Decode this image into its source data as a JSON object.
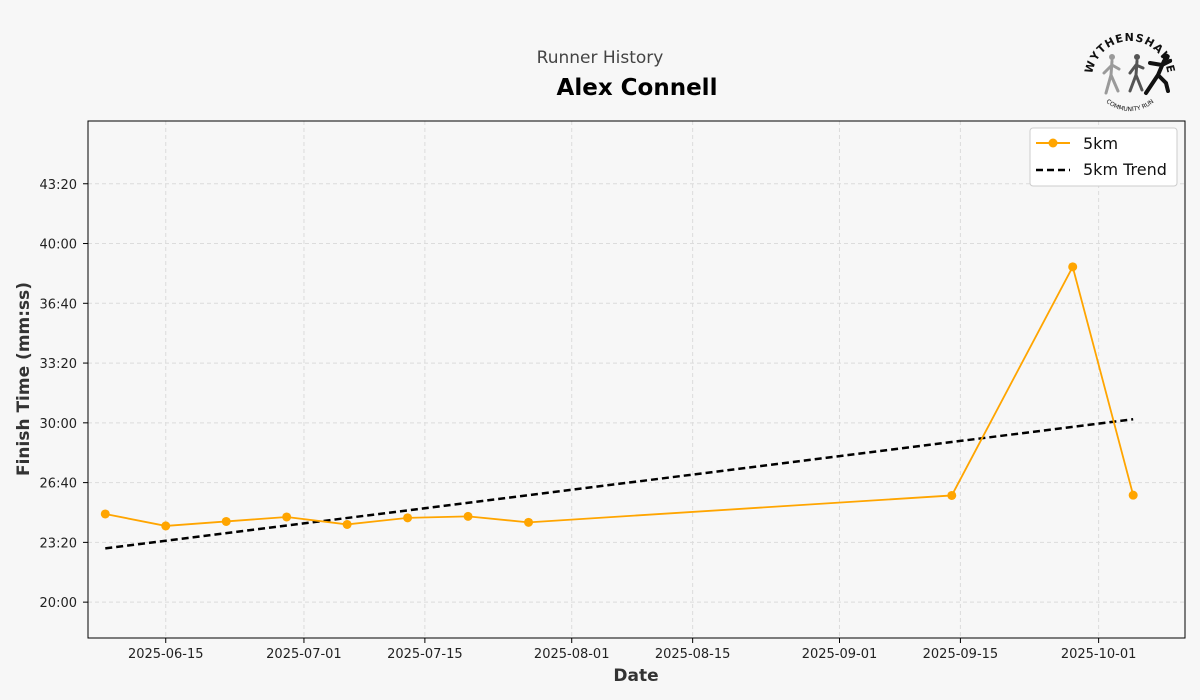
{
  "chart_data": {
    "type": "line",
    "subtitle": "Runner History",
    "title": "Alex Connell",
    "xlabel": "Date",
    "ylabel": "Finish Time (mm:ss)",
    "logo_text": "WYTHENSHAWE",
    "logo_subtext": "COMMUNITY RUN",
    "x_ticks": [
      "2025-06-15",
      "2025-07-01",
      "2025-07-15",
      "2025-08-01",
      "2025-08-15",
      "2025-09-01",
      "2025-09-15",
      "2025-10-01"
    ],
    "y_ticks": [
      "20:00",
      "23:20",
      "26:40",
      "30:00",
      "33:20",
      "36:40",
      "40:00",
      "43:20"
    ],
    "y_tick_values_seconds": [
      1200,
      1400,
      1600,
      1800,
      2000,
      2200,
      2400,
      2600
    ],
    "xlim": [
      "2025-06-06",
      "2025-10-11"
    ],
    "ylim": [
      "18:00",
      "46:50"
    ],
    "grid": true,
    "legend_position": "top-right",
    "series": [
      {
        "name": "5km",
        "color": "#FFA500",
        "marker": "circle",
        "points": [
          {
            "x": "2025-06-08",
            "y": "24:55"
          },
          {
            "x": "2025-06-15",
            "y": "24:15"
          },
          {
            "x": "2025-06-22",
            "y": "24:30"
          },
          {
            "x": "2025-06-29",
            "y": "24:45"
          },
          {
            "x": "2025-07-06",
            "y": "24:20"
          },
          {
            "x": "2025-07-13",
            "y": "24:42"
          },
          {
            "x": "2025-07-20",
            "y": "24:47"
          },
          {
            "x": "2025-07-27",
            "y": "24:27"
          },
          {
            "x": "2025-09-14",
            "y": "25:57"
          },
          {
            "x": "2025-09-28",
            "y": "38:42"
          },
          {
            "x": "2025-10-05",
            "y": "25:58"
          }
        ]
      },
      {
        "name": "5km Trend",
        "color": "#000000",
        "style": "dashed",
        "points": [
          {
            "x": "2025-06-08",
            "y": "23:00"
          },
          {
            "x": "2025-10-05",
            "y": "30:12"
          }
        ]
      }
    ]
  }
}
